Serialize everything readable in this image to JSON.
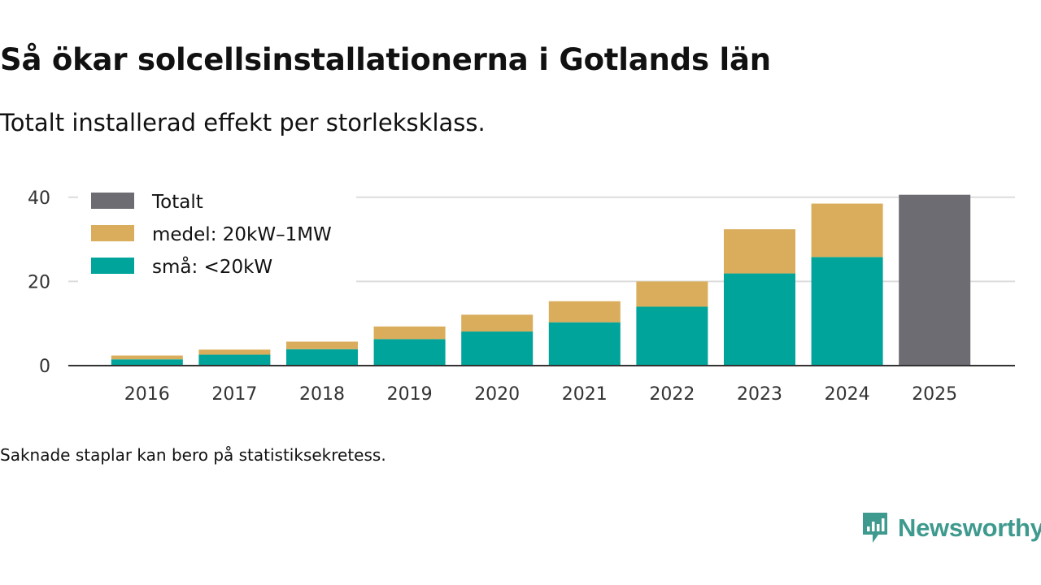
{
  "title": "Så ökar solcellsinstallationerna i Gotlands län",
  "subtitle": "Totalt installerad effekt per storleksklass.",
  "footnote": "Saknade staplar kan bero på statistiksekretess.",
  "brand": {
    "name": "Newsworthy",
    "icon": "newsworthy-logo-icon",
    "color": "#3e9a8e"
  },
  "chart_data": {
    "type": "bar",
    "stacked": true,
    "title": "Så ökar solcellsinstallationerna i Gotlands län",
    "subtitle": "Totalt installerad effekt per storleksklass.",
    "xlabel": "",
    "ylabel": "",
    "ylim": [
      0,
      45
    ],
    "yticks": [
      0,
      20,
      40
    ],
    "grid": true,
    "legend_position": "top-left",
    "categories": [
      "2016",
      "2017",
      "2018",
      "2019",
      "2020",
      "2021",
      "2022",
      "2023",
      "2024",
      "2025"
    ],
    "series": [
      {
        "name": "små: <20kW",
        "color": "#00a49a",
        "values": [
          1.5,
          2.6,
          3.9,
          6.3,
          8.1,
          10.3,
          14.0,
          21.9,
          25.8,
          null
        ]
      },
      {
        "name": "medel: 20kW–1MW",
        "color": "#d9ad5b",
        "values": [
          0.9,
          1.2,
          1.8,
          3.0,
          4.0,
          5.0,
          6.0,
          10.5,
          12.7,
          null
        ]
      },
      {
        "name": "Totalt",
        "color": "#6d6c72",
        "values": [
          null,
          null,
          null,
          null,
          null,
          null,
          null,
          null,
          null,
          40.6
        ]
      }
    ],
    "legend": [
      {
        "name": "Totalt",
        "color": "#6d6c72"
      },
      {
        "name": "medel: 20kW–1MW",
        "color": "#d9ad5b"
      },
      {
        "name": "små: <20kW",
        "color": "#00a49a"
      }
    ]
  }
}
